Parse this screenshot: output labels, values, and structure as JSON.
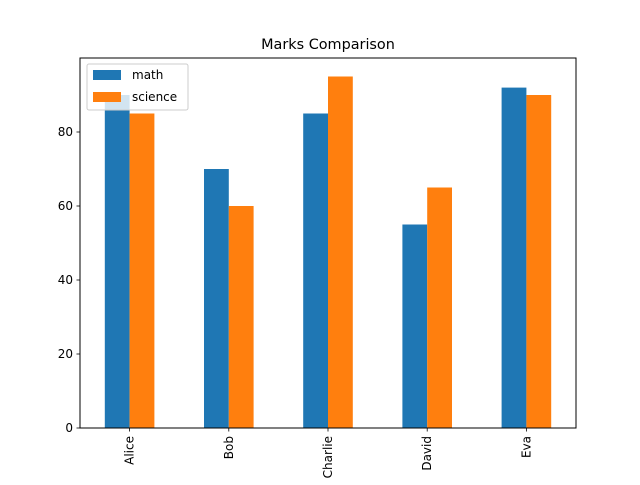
{
  "chart_data": {
    "type": "bar",
    "title": "Marks Comparison",
    "xlabel": "",
    "ylabel": "",
    "categories": [
      "Alice",
      "Bob",
      "Charlie",
      "David",
      "Eva"
    ],
    "series": [
      {
        "name": "math",
        "color": "#1f77b4",
        "values": [
          90,
          70,
          85,
          55,
          92
        ]
      },
      {
        "name": "science",
        "color": "#ff7f0e",
        "values": [
          85,
          60,
          95,
          65,
          90
        ]
      }
    ],
    "ylim": [
      0,
      100
    ],
    "yticks": [
      0,
      20,
      40,
      60,
      80
    ],
    "grid": false,
    "legend_position": "upper-left"
  }
}
